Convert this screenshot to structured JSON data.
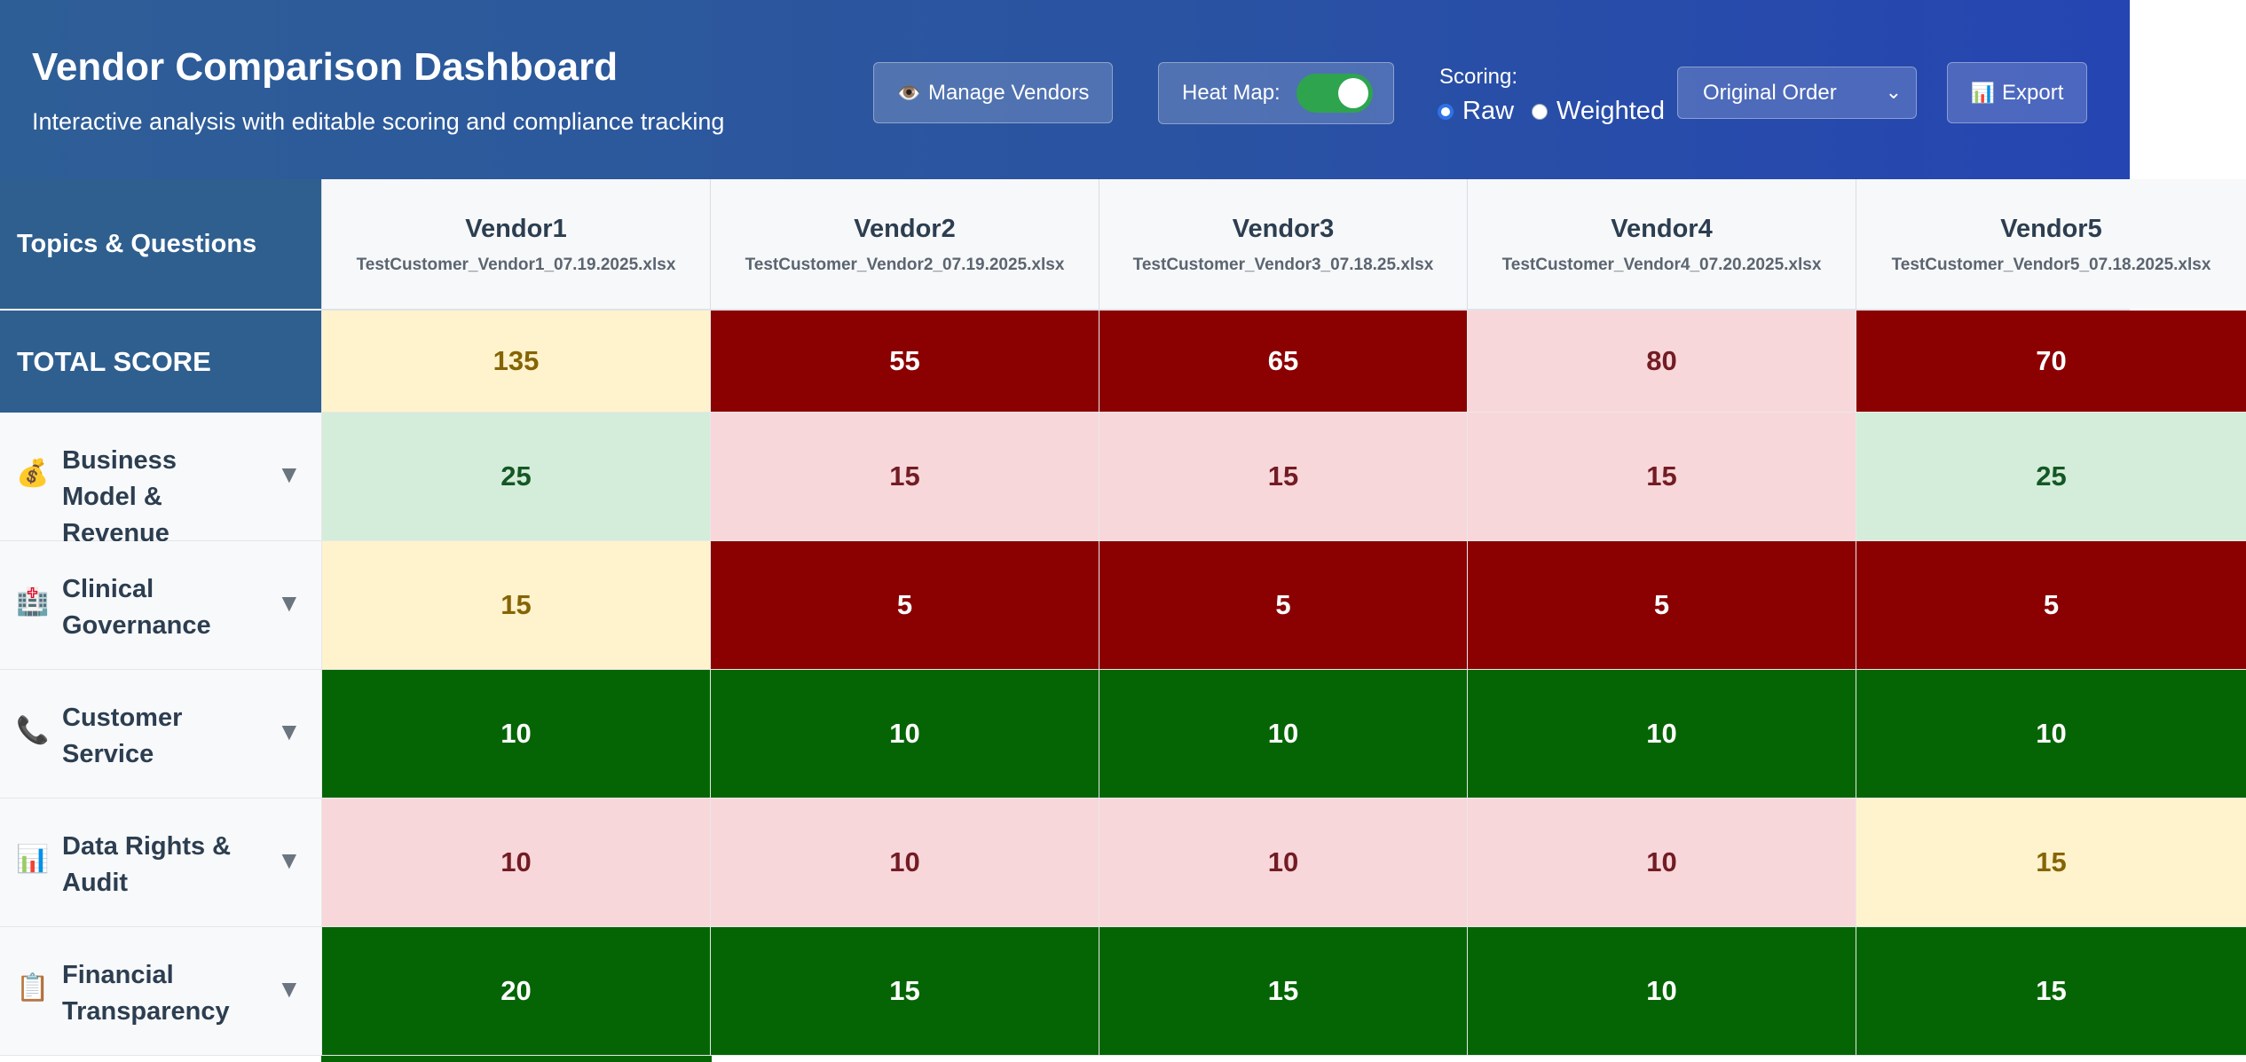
{
  "header": {
    "title": "Vendor Comparison Dashboard",
    "subtitle": "Interactive analysis with editable scoring and compliance tracking",
    "manage_icon": "👁️",
    "manage_label": "Manage Vendors",
    "heatmap_label": "Heat Map:",
    "heatmap_on": true,
    "scoring_label": "Scoring:",
    "scoring_options": [
      "Raw",
      "Weighted"
    ],
    "scoring_selected": "Raw",
    "order_select": "Original Order",
    "export_icon": "📊",
    "export_label": "Export"
  },
  "table": {
    "topics_header": "Topics & Questions",
    "total_label": "TOTAL SCORE",
    "vendors": [
      {
        "name": "Vendor1",
        "file": "TestCustomer_Vendor1_07.19.2025.xlsx"
      },
      {
        "name": "Vendor2",
        "file": "TestCustomer_Vendor2_07.19.2025.xlsx"
      },
      {
        "name": "Vendor3",
        "file": "TestCustomer_Vendor3_07.18.25.xlsx"
      },
      {
        "name": "Vendor4",
        "file": "TestCustomer_Vendor4_07.20.2025.xlsx"
      },
      {
        "name": "Vendor5",
        "file": "TestCustomer_Vendor5_07.18.2025.xlsx"
      }
    ],
    "totals": [
      "135",
      "55",
      "65",
      "80",
      "70"
    ],
    "total_heat": [
      "yellow",
      "darkred",
      "darkred",
      "pink",
      "darkred"
    ],
    "rows": [
      {
        "icon": "💰",
        "label": "Business Model & Revenue",
        "scores": [
          "25",
          "15",
          "15",
          "15",
          "25"
        ],
        "heat": [
          "lightgreen",
          "pink",
          "pink",
          "pink",
          "lightgreen"
        ]
      },
      {
        "icon": "🏥",
        "label": "Clinical Governance",
        "scores": [
          "15",
          "5",
          "5",
          "5",
          "5"
        ],
        "heat": [
          "yellow",
          "darkred",
          "darkred",
          "darkred",
          "darkred"
        ]
      },
      {
        "icon": "📞",
        "label": "Customer Service",
        "scores": [
          "10",
          "10",
          "10",
          "10",
          "10"
        ],
        "heat": [
          "darkgreen",
          "darkgreen",
          "darkgreen",
          "darkgreen",
          "darkgreen"
        ]
      },
      {
        "icon": "📊",
        "label": "Data Rights & Audit",
        "scores": [
          "10",
          "10",
          "10",
          "10",
          "15"
        ],
        "heat": [
          "pink",
          "pink",
          "pink",
          "pink",
          "yellow"
        ]
      },
      {
        "icon": "📋",
        "label": "Financial Transparency",
        "scores": [
          "20",
          "15",
          "15",
          "10",
          "15"
        ],
        "heat": [
          "darkgreen",
          "darkgreen",
          "darkgreen",
          "darkgreen",
          "darkgreen"
        ]
      }
    ],
    "caret": "▼"
  },
  "colors": {
    "header_start": "#2e5e96",
    "header_end": "#2545b2",
    "label_blue": "#2f5f8f",
    "toggle_on": "#2ea44f",
    "heat": {
      "darkred": {
        "bg": "#8b0000",
        "fg": "#ffffff"
      },
      "pink": {
        "bg": "#f8d7da",
        "fg": "#721c24"
      },
      "yellow": {
        "bg": "#fff3cd",
        "fg": "#856404"
      },
      "lightgreen": {
        "bg": "#d4edda",
        "fg": "#155724"
      },
      "darkgreen": {
        "bg": "#056505",
        "fg": "#ffffff"
      }
    }
  }
}
